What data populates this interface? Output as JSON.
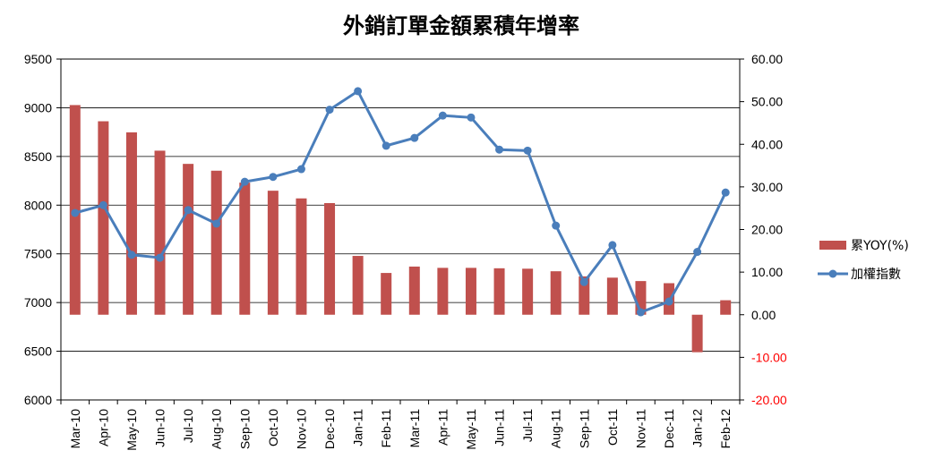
{
  "chart_data": {
    "type": "bar+line",
    "title": "外銷訂單金額累積年增率",
    "categories": [
      "Mar-10",
      "Apr-10",
      "May-10",
      "Jun-10",
      "Jul-10",
      "Aug-10",
      "Sep-10",
      "Oct-10",
      "Nov-10",
      "Dec-10",
      "Jan-11",
      "Feb-11",
      "Mar-11",
      "Apr-11",
      "May-11",
      "Jun-11",
      "Jul-11",
      "Aug-11",
      "Sep-11",
      "Oct-11",
      "Nov-11",
      "Dec-11",
      "Jan-12",
      "Feb-12"
    ],
    "left_axis": {
      "ylim": [
        6000,
        9500
      ],
      "ticks": [
        "9500",
        "9000",
        "8500",
        "8000",
        "7500",
        "7000",
        "6500",
        "6000"
      ]
    },
    "right_axis": {
      "ylim": [
        -20,
        60
      ],
      "ticks": [
        "60.00",
        "50.00",
        "40.00",
        "30.00",
        "20.00",
        "10.00",
        "0.00",
        "-10.00",
        "-20.00"
      ],
      "negative_color": "#ff0000"
    },
    "series": [
      {
        "name": "累YOY(%)",
        "kind": "bar",
        "axis": "right",
        "color": "#c0504d",
        "values": [
          49.2,
          45.4,
          42.8,
          38.5,
          35.4,
          33.8,
          31.0,
          29.1,
          27.3,
          26.2,
          13.8,
          9.8,
          11.3,
          11.0,
          11.0,
          10.9,
          10.8,
          10.2,
          9.0,
          8.7,
          7.9,
          7.4,
          -8.8,
          3.4
        ]
      },
      {
        "name": "加權指數",
        "kind": "line",
        "axis": "left",
        "color": "#4a7ebb",
        "values": [
          7920,
          8000,
          7490,
          7460,
          7950,
          7810,
          8240,
          8290,
          8370,
          8980,
          9170,
          8610,
          8690,
          8920,
          8900,
          8570,
          8560,
          7790,
          7210,
          7590,
          6900,
          7010,
          7520,
          8130
        ]
      }
    ],
    "legend": {
      "position": "right"
    },
    "grid": true
  }
}
